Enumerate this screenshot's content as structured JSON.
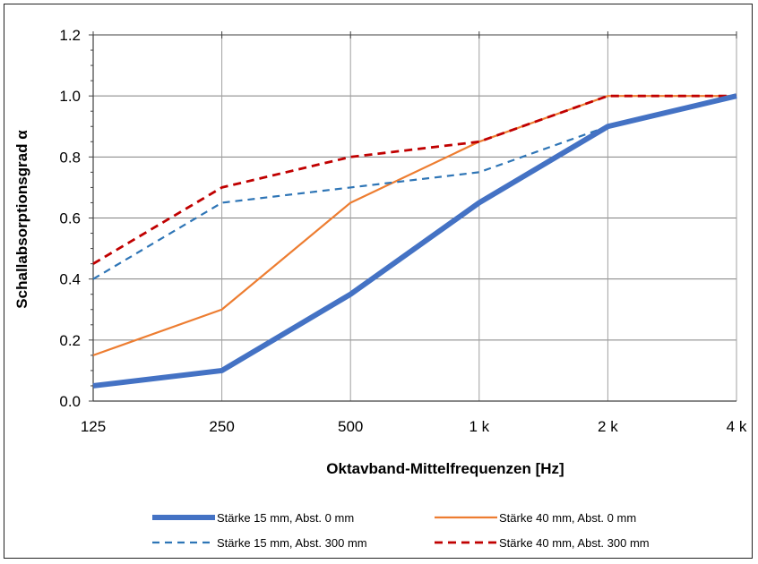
{
  "chart_data": {
    "type": "line",
    "title": "",
    "xlabel": "Oktavband-Mittelfrequenzen [Hz]",
    "ylabel": "Schallabsorptionsgrad α",
    "categories": [
      "125",
      "250",
      "500",
      "1 k",
      "2 k",
      "4 k"
    ],
    "y_ticks": [
      "0.0",
      "0.2",
      "0.4",
      "0.6",
      "0.8",
      "1.0",
      "1.2"
    ],
    "ylim": [
      0,
      1.2
    ],
    "grid": true,
    "legend_position": "bottom",
    "series": [
      {
        "name": "Stärke 15 mm, Abst. 0 mm",
        "values": [
          0.05,
          0.1,
          0.35,
          0.65,
          0.9,
          1.0
        ],
        "color": "#4472c4",
        "style": "solid-thick"
      },
      {
        "name": "Stärke 40 mm, Abst. 0 mm",
        "values": [
          0.15,
          0.3,
          0.65,
          0.85,
          1.0,
          1.0
        ],
        "color": "#ed7d31",
        "style": "solid"
      },
      {
        "name": "Stärke 15 mm, Abst. 300 mm",
        "values": [
          0.4,
          0.65,
          0.7,
          0.75,
          0.9,
          1.0
        ],
        "color": "#2e75b6",
        "style": "dashed"
      },
      {
        "name": "Stärke 40 mm, Abst. 300 mm",
        "values": [
          0.45,
          0.7,
          0.8,
          0.85,
          1.0,
          1.0
        ],
        "color": "#c00000",
        "style": "dashed"
      }
    ]
  }
}
